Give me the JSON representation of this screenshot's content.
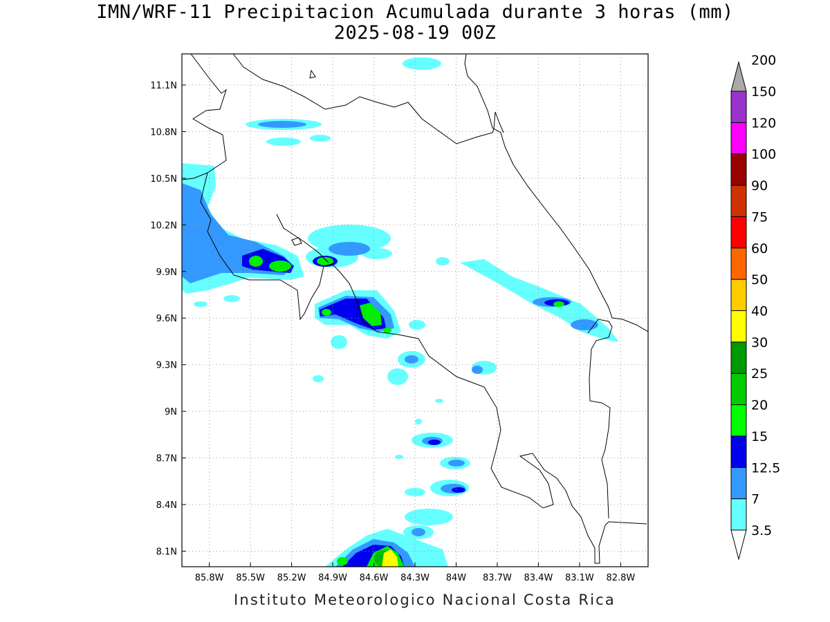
{
  "title": {
    "line1": "IMN/WRF-11 Precipitacion Acumulada durante 3 horas (mm)",
    "line2": "2025-08-19 00Z"
  },
  "footer": "Instituto Meteorologico Nacional Costa Rica",
  "map": {
    "lon_range": [
      -86.0,
      -82.6
    ],
    "lat_range": [
      8.0,
      11.3
    ],
    "lon_ticks": [
      {
        "value": -85.8,
        "label": "85.8W"
      },
      {
        "value": -85.5,
        "label": "85.5W"
      },
      {
        "value": -85.2,
        "label": "85.2W"
      },
      {
        "value": -84.9,
        "label": "84.9W"
      },
      {
        "value": -84.6,
        "label": "84.6W"
      },
      {
        "value": -84.3,
        "label": "84.3W"
      },
      {
        "value": -84.0,
        "label": "84W"
      },
      {
        "value": -83.7,
        "label": "83.7W"
      },
      {
        "value": -83.4,
        "label": "83.4W"
      },
      {
        "value": -83.1,
        "label": "83.1W"
      },
      {
        "value": -82.8,
        "label": "82.8W"
      }
    ],
    "lat_ticks": [
      {
        "value": 11.1,
        "label": "11.1N"
      },
      {
        "value": 10.8,
        "label": "10.8N"
      },
      {
        "value": 10.5,
        "label": "10.5N"
      },
      {
        "value": 10.2,
        "label": "10.2N"
      },
      {
        "value": 9.9,
        "label": "9.9N"
      },
      {
        "value": 9.6,
        "label": "9.6N"
      },
      {
        "value": 9.3,
        "label": "9.3N"
      },
      {
        "value": 9.0,
        "label": "9N"
      },
      {
        "value": 8.7,
        "label": "8.7N"
      },
      {
        "value": 8.4,
        "label": "8.4N"
      },
      {
        "value": 8.1,
        "label": "8.1N"
      }
    ],
    "grid": true
  },
  "colorbar": {
    "labels": [
      "3.5",
      "7",
      "12.5",
      "15",
      "20",
      "25",
      "30",
      "40",
      "50",
      "60",
      "75",
      "90",
      "100",
      "120",
      "150",
      "200"
    ],
    "colors": [
      "#66ffff",
      "#3399ff",
      "#0000ee",
      "#00ff00",
      "#00cc00",
      "#009900",
      "#ffff00",
      "#ffcc00",
      "#ff6600",
      "#ff0000",
      "#cc3300",
      "#990000",
      "#ff00ff",
      "#9933cc",
      "#f4f4f4",
      "#aaaaaa"
    ]
  },
  "precip_cells": [
    {
      "lon": -84.45,
      "lat": 8.05,
      "level": 2,
      "rx": 0.12,
      "ry": 0.08
    },
    {
      "lon": -84.45,
      "lat": 8.05,
      "level": 4,
      "rx": 0.06,
      "ry": 0.05
    },
    {
      "lon": -84.45,
      "lat": 8.04,
      "level": 6,
      "rx": 0.03,
      "ry": 0.03
    },
    {
      "lon": -84.7,
      "lat": 8.03,
      "level": 3,
      "rx": 0.04,
      "ry": 0.03
    },
    {
      "lon": -84.58,
      "lat": 9.6,
      "level": 2,
      "rx": 0.1,
      "ry": 0.07
    },
    {
      "lon": -84.58,
      "lat": 9.61,
      "level": 4,
      "rx": 0.05,
      "ry": 0.04
    },
    {
      "lon": -84.82,
      "lat": 9.63,
      "level": 4,
      "rx": 0.03,
      "ry": 0.02
    },
    {
      "lon": -85.3,
      "lat": 9.95,
      "level": 2,
      "rx": 0.12,
      "ry": 0.05
    },
    {
      "lon": -85.39,
      "lat": 9.96,
      "level": 4,
      "rx": 0.04,
      "ry": 0.03
    },
    {
      "lon": -85.23,
      "lat": 9.95,
      "level": 4,
      "rx": 0.05,
      "ry": 0.03
    },
    {
      "lon": -84.88,
      "lat": 9.97,
      "level": 4,
      "rx": 0.05,
      "ry": 0.03
    },
    {
      "lon": -84.06,
      "lat": 8.8,
      "level": 2,
      "rx": 0.04,
      "ry": 0.02
    },
    {
      "lon": -83.97,
      "lat": 8.5,
      "level": 2,
      "rx": 0.03,
      "ry": 0.02
    },
    {
      "lon": -83.1,
      "lat": 9.69,
      "level": 4,
      "rx": 0.05,
      "ry": 0.025
    }
  ]
}
